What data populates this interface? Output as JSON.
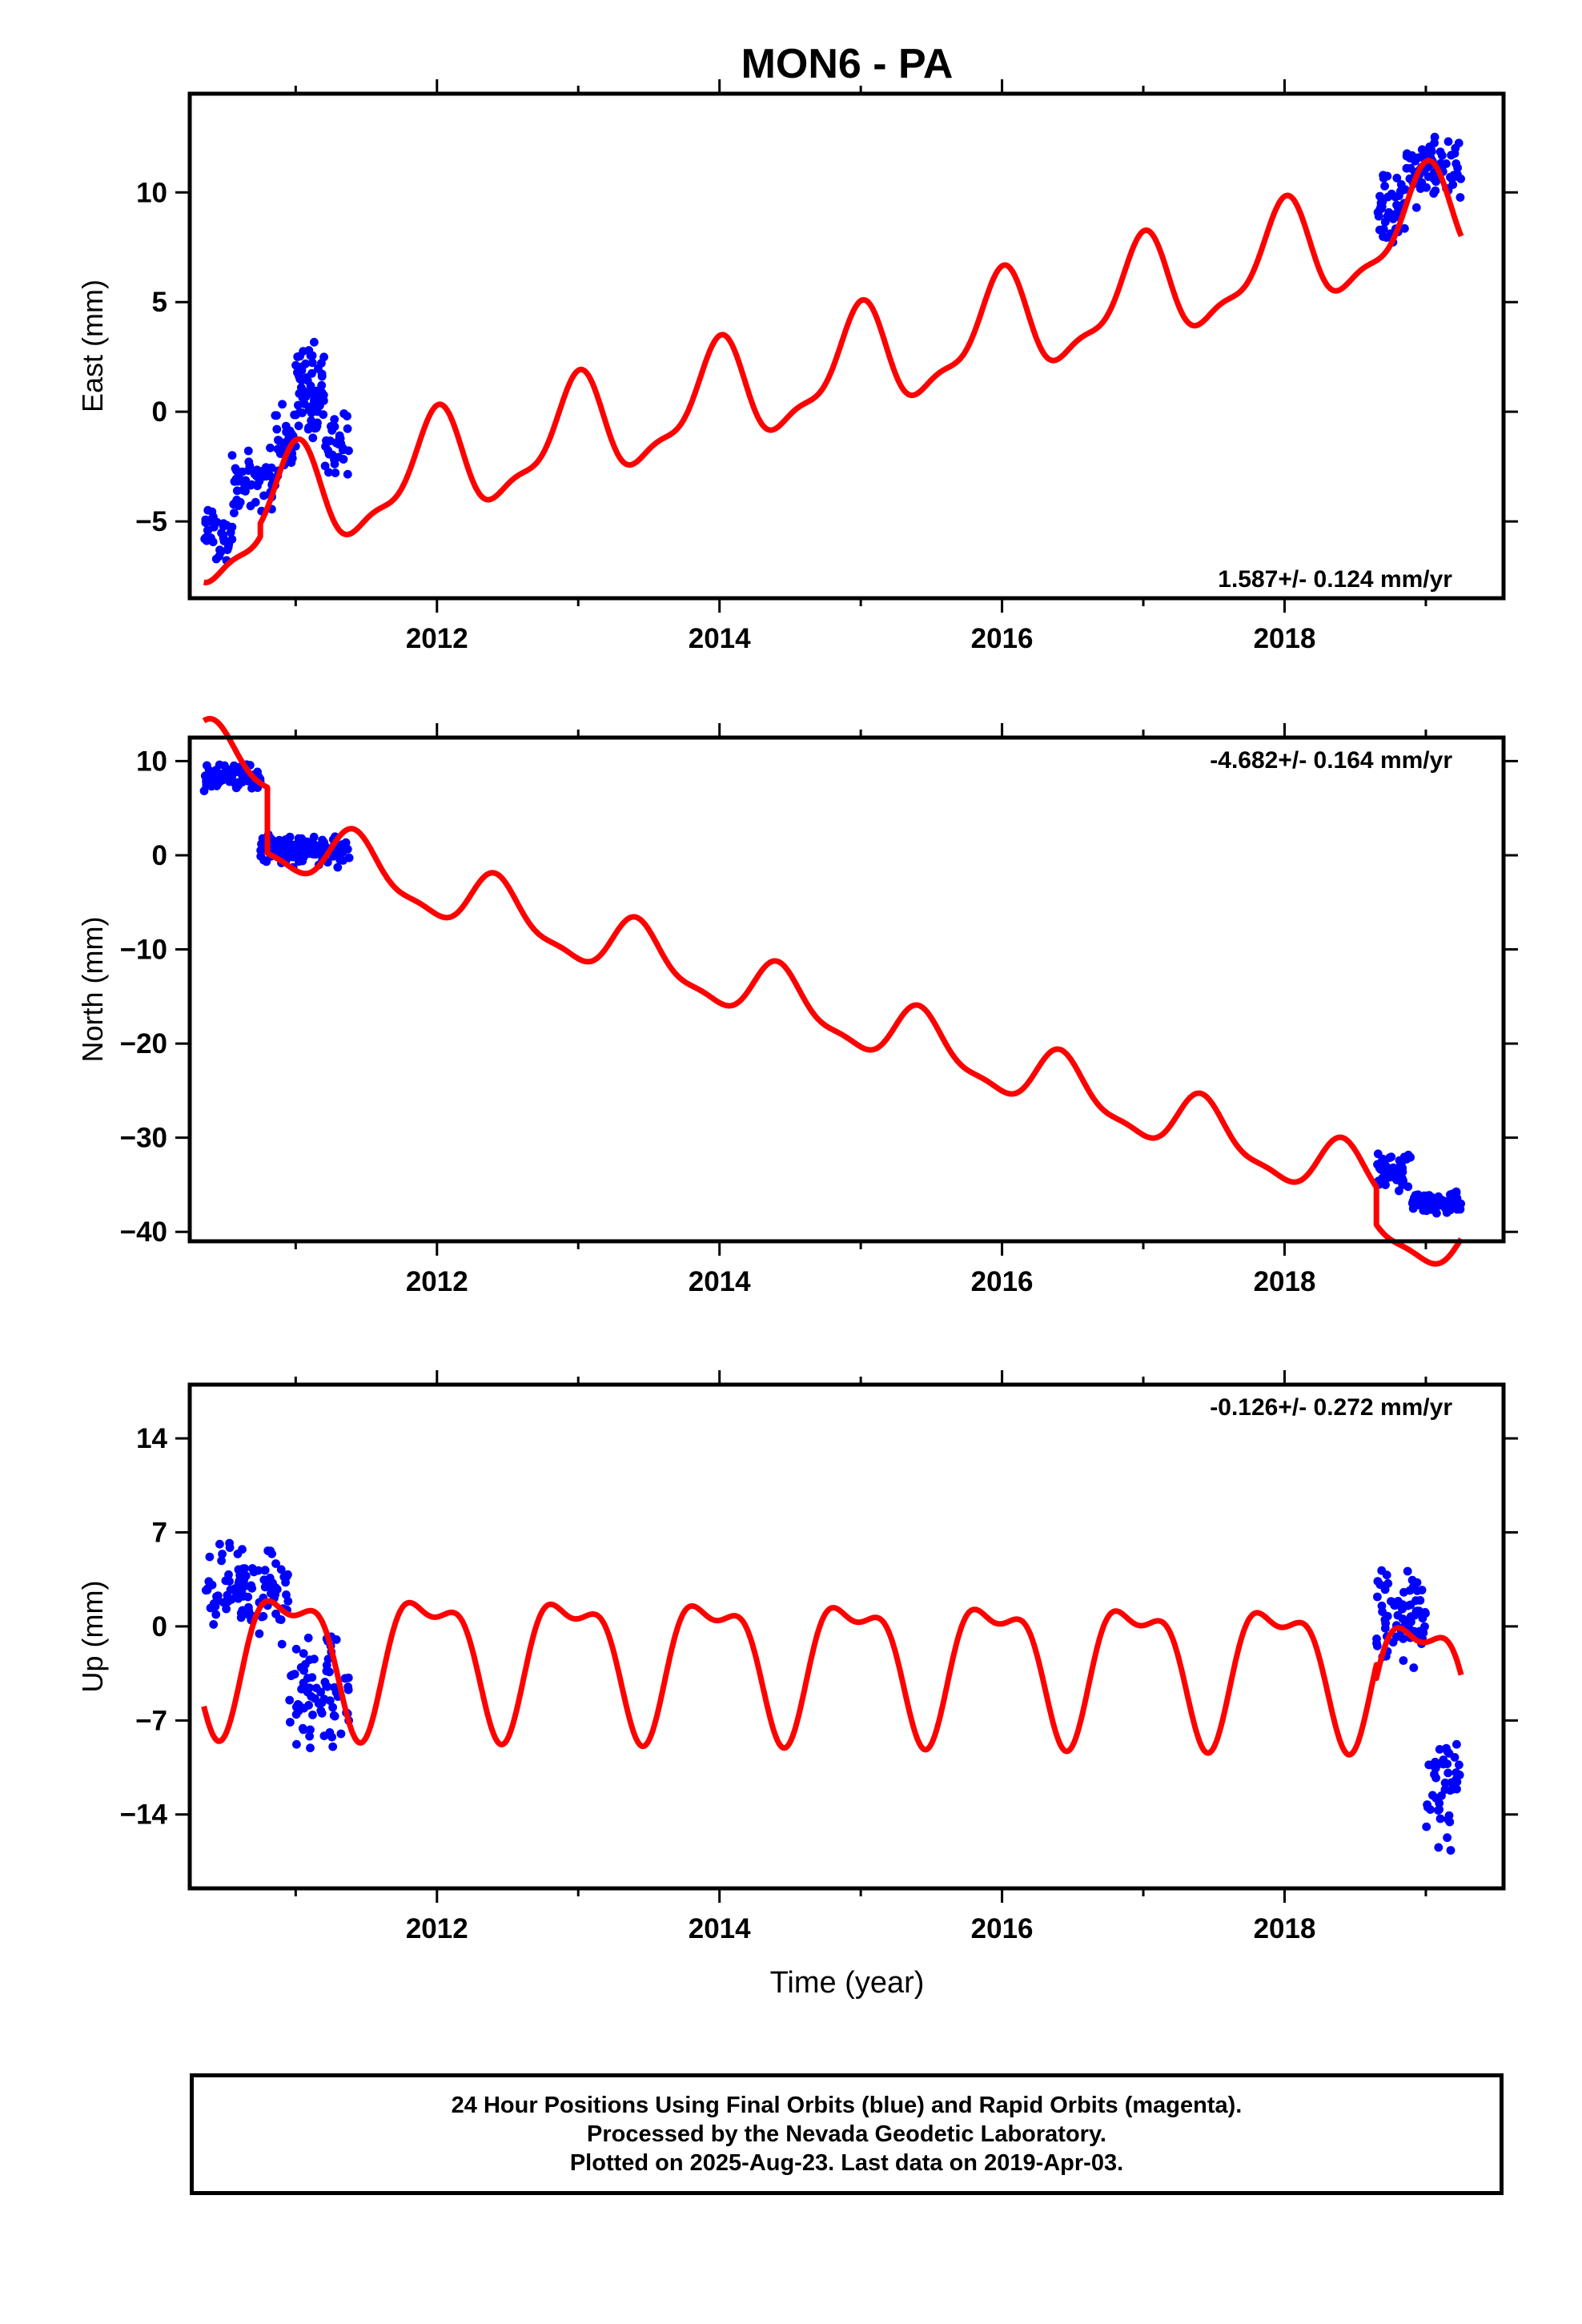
{
  "title": "MON6 - PA",
  "x_axis_label": "Time (year)",
  "footer": {
    "line1": "24 Hour Positions Using Final Orbits (blue) and Rapid Orbits (magenta).",
    "line2": "Processed by the Nevada Geodetic Laboratory.",
    "line3": "Plotted on 2025-Aug-23. Last data on 2019-Apr-03."
  },
  "colors": {
    "data": "#0000ff",
    "model": "#ff0000",
    "frame": "#000000"
  },
  "chart_data": [
    {
      "type": "scatter",
      "component": "East",
      "ylabel": "East (mm)",
      "rate_label": "1.587+/- 0.124 mm/yr",
      "rate_position": "bottom-right",
      "xlim": [
        2010.25,
        2019.55
      ],
      "ylim": [
        -8.5,
        14.5
      ],
      "xticks": [
        2012,
        2014,
        2016,
        2018
      ],
      "yticks": [
        -5,
        0,
        5,
        10
      ],
      "grid": false,
      "model": {
        "name": "",
        "offset": -2.6,
        "offset_ref": 2012.0,
        "rate": 1.587,
        "annual_sin": -0.2,
        "annual_cos": 2.2,
        "semiannual_sin": 0.3,
        "semiannual_cos": 0.7,
        "segments": [
          {
            "x0": 2010.35,
            "x1": 2010.75,
            "offset_adjust": -0.6
          },
          {
            "x0": 2010.75,
            "x1": 2011.5,
            "offset_adjust": 0.0
          },
          {
            "x0": 2011.5,
            "x1": 2018.65,
            "offset_adjust": 0.0
          },
          {
            "x0": 2018.65,
            "x1": 2019.25,
            "offset_adjust": 0.0
          }
        ]
      },
      "data_series": [
        {
          "x0": 2010.35,
          "x1": 2010.55,
          "n": 35,
          "y": -5.6,
          "spread": 1.3
        },
        {
          "x0": 2010.55,
          "x1": 2010.85,
          "n": 55,
          "y": -3.2,
          "spread": 1.2
        },
        {
          "x0": 2010.85,
          "x1": 2011.0,
          "n": 30,
          "y": -1.5,
          "spread": 1.6
        },
        {
          "x0": 2011.0,
          "x1": 2011.2,
          "n": 70,
          "y": 0.8,
          "spread": 1.7
        },
        {
          "x0": 2011.2,
          "x1": 2011.38,
          "n": 30,
          "y": -1.5,
          "spread": 1.5
        },
        {
          "x0": 2018.65,
          "x1": 2018.85,
          "n": 45,
          "y": 9.4,
          "spread": 1.3
        },
        {
          "x0": 2018.85,
          "x1": 2019.25,
          "n": 75,
          "y": 11.3,
          "spread": 1.3
        }
      ]
    },
    {
      "type": "scatter",
      "component": "North",
      "ylabel": "North (mm)",
      "rate_label": "-4.682+/- 0.164 mm/yr",
      "rate_position": "top-right",
      "xlim": [
        2010.25,
        2019.55
      ],
      "ylim": [
        -41,
        12.5
      ],
      "xticks": [
        2012,
        2014,
        2016,
        2018
      ],
      "yticks": [
        -40,
        -30,
        -20,
        -10,
        0,
        10
      ],
      "grid": false,
      "model": {
        "name": "",
        "offset": -3.8,
        "offset_ref": 2012.0,
        "rate": -4.682,
        "annual_sin": 1.2,
        "annual_cos": -2.7,
        "semiannual_sin": -0.9,
        "semiannual_cos": 0.2,
        "segments": [
          {
            "x0": 2010.35,
            "x1": 2010.8,
            "offset_adjust": 7.0
          },
          {
            "x0": 2010.8,
            "x1": 2011.5,
            "offset_adjust": 0.0
          },
          {
            "x0": 2011.5,
            "x1": 2018.65,
            "offset_adjust": 0.0
          },
          {
            "x0": 2018.65,
            "x1": 2019.25,
            "offset_adjust": -4.0
          }
        ]
      },
      "data_series": [
        {
          "x0": 2010.35,
          "x1": 2010.75,
          "n": 80,
          "y": 8.2,
          "spread": 1.3
        },
        {
          "x0": 2010.75,
          "x1": 2011.38,
          "n": 110,
          "y": 0.5,
          "spread": 1.4
        },
        {
          "x0": 2018.65,
          "x1": 2018.9,
          "n": 45,
          "y": -33.5,
          "spread": 1.8
        },
        {
          "x0": 2018.9,
          "x1": 2019.25,
          "n": 70,
          "y": -36.8,
          "spread": 1.0
        }
      ]
    },
    {
      "type": "scatter",
      "component": "Up",
      "ylabel": "Up (mm)",
      "rate_label": "-0.126+/- 0.272 mm/yr",
      "rate_position": "top-right",
      "xlim": [
        2010.25,
        2019.55
      ],
      "ylim": [
        -19.5,
        18
      ],
      "xticks": [
        2012,
        2014,
        2016,
        2018
      ],
      "yticks": [
        -14,
        -7,
        0,
        7,
        14
      ],
      "grid": false,
      "model": {
        "name": "",
        "offset": -2.0,
        "offset_ref": 2012.0,
        "rate": -0.126,
        "annual_sin": -1.5,
        "annual_cos": 4.5,
        "semiannual_sin": 0.9,
        "semiannual_cos": -1.8,
        "segments": [
          {
            "x0": 2010.35,
            "x1": 2011.0,
            "offset_adjust": 0.0
          },
          {
            "x0": 2011.0,
            "x1": 2011.5,
            "offset_adjust": 0.0
          },
          {
            "x0": 2011.5,
            "x1": 2018.65,
            "offset_adjust": 0.0
          },
          {
            "x0": 2018.65,
            "x1": 2019.25,
            "offset_adjust": -1.0
          }
        ]
      },
      "data_series": [
        {
          "x0": 2010.35,
          "x1": 2010.95,
          "n": 100,
          "y": 2.5,
          "spread": 2.8
        },
        {
          "x0": 2010.95,
          "x1": 2011.38,
          "n": 75,
          "y": -5.0,
          "spread": 3.5
        },
        {
          "x0": 2018.65,
          "x1": 2019.0,
          "n": 70,
          "y": 1.0,
          "spread": 3.0
        },
        {
          "x0": 2019.0,
          "x1": 2019.25,
          "n": 45,
          "y": -12.0,
          "spread": 3.2
        }
      ]
    }
  ]
}
